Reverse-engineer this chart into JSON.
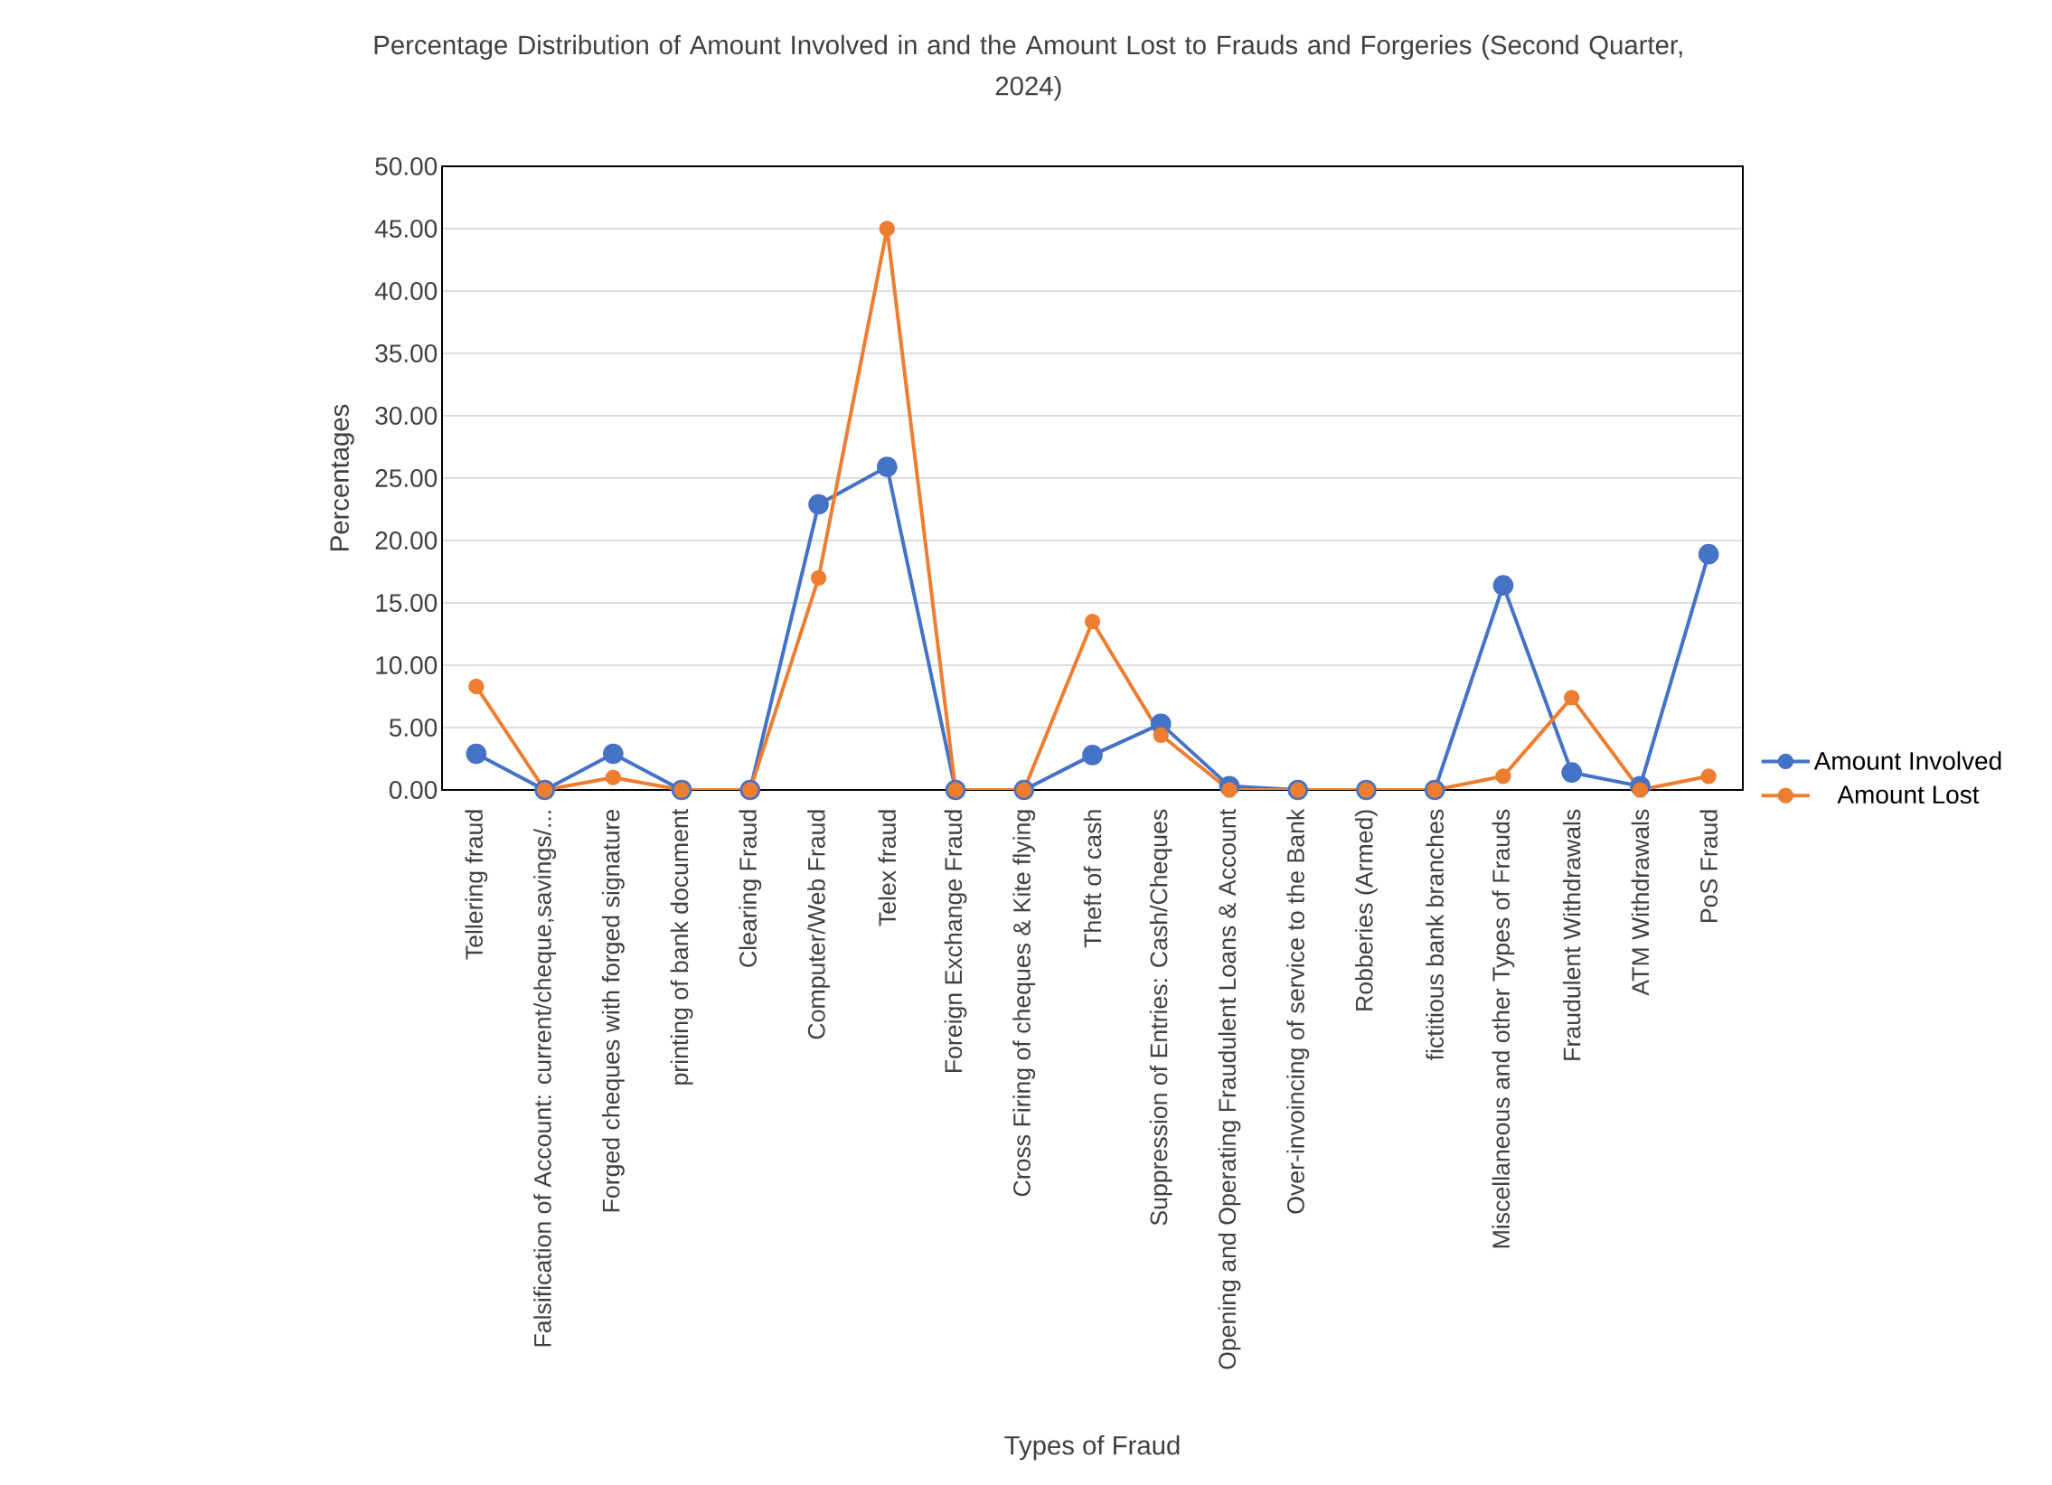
{
  "chart_data": {
    "type": "line",
    "title": "Percentage Distribution of Amount Involved in and the Amount Lost to Frauds and Forgeries (Second Quarter, 2024)",
    "xlabel": "Types of Fraud",
    "ylabel": "Percentages",
    "categories": [
      "Tellering fraud",
      "Falsification of Account: current/cheque,savings/...",
      "Forged cheques with forged signature",
      "printing of bank document",
      "Clearing Fraud",
      "Computer/Web Fraud",
      "Telex fraud",
      "Foreign Exchange Fraud",
      "Cross Firing of cheques & Kite flying",
      "Theft of cash",
      "Suppression of Entries: Cash/Cheques",
      "Opening and Operating Fraudulent Loans & Account",
      "Over-invoincing of service to the Bank",
      "Robberies (Armed)",
      "fictitious bank branches",
      "Miscellaneous and other Types of Frauds",
      "Fraudulent Withdrawals",
      "ATM Withdrawals",
      "PoS Fraud"
    ],
    "series": [
      {
        "name": "Amount Involved",
        "color": "#4472c4",
        "values": [
          2.9,
          0,
          2.9,
          0,
          0,
          22.9,
          25.9,
          0,
          0,
          2.8,
          5.3,
          0.3,
          0,
          0,
          0,
          16.4,
          1.4,
          0.3,
          18.9
        ]
      },
      {
        "name": "Amount Lost",
        "color": "#ed7d31",
        "values": [
          8.3,
          0,
          1.0,
          0,
          0,
          17.0,
          45,
          0,
          0,
          13.5,
          4.4,
          0,
          0,
          0,
          0,
          1.1,
          7.4,
          0,
          1.1
        ]
      }
    ],
    "ylim": [
      0,
      50
    ],
    "yticks": [
      {
        "value": 0,
        "label": "0.00"
      },
      {
        "value": 5,
        "label": "5.00"
      },
      {
        "value": 10,
        "label": "10.00"
      },
      {
        "value": 15,
        "label": "15.00"
      },
      {
        "value": 20,
        "label": "20.00"
      },
      {
        "value": 25,
        "label": "25.00"
      },
      {
        "value": 30,
        "label": "30.00"
      },
      {
        "value": 35,
        "label": "35.00"
      },
      {
        "value": 40,
        "label": "40.00"
      },
      {
        "value": 45,
        "label": "45.00"
      },
      {
        "value": 50,
        "label": "50.00"
      }
    ],
    "grid": "y",
    "legend": "right",
    "marker": "circle",
    "line_style": "solid"
  }
}
